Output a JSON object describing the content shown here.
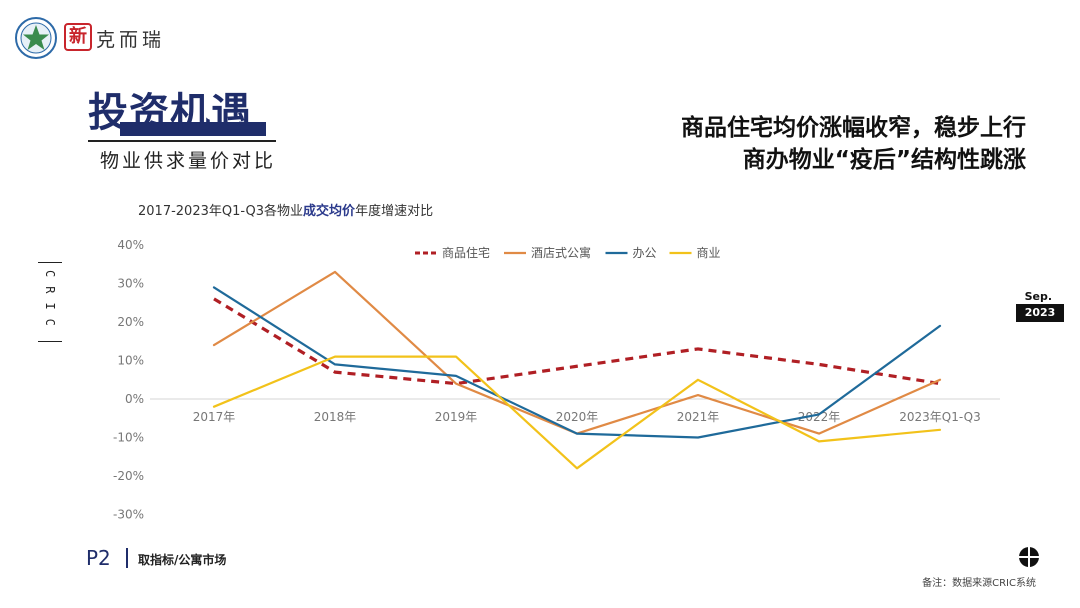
{
  "brand": {
    "name": "克而瑞",
    "mark": "新"
  },
  "title": {
    "main": "投资机遇",
    "sub": "物业供求量价对比"
  },
  "headline": {
    "line1": "商品住宅均价涨幅收窄，稳步上行",
    "line2": "商办物业“疫后”结构性跳涨"
  },
  "side_label": "CRIC",
  "date": {
    "month": "Sep.",
    "year": "2023"
  },
  "chart_title": {
    "prefix": "2017-2023年Q1-Q3各物业",
    "highlight": "成交均价",
    "suffix": "年度增速对比"
  },
  "footer": {
    "page": "P2",
    "section": "取指标/公寓市场",
    "source": "备注：数据来源CRIC系统"
  },
  "colors": {
    "navy": "#1f2d6a",
    "residential": "#b01f24",
    "apartment": "#e08a45",
    "office": "#1f6a9a",
    "commercial": "#f2c21a"
  },
  "chart_data": {
    "type": "line",
    "categories": [
      "2017年",
      "2018年",
      "2019年",
      "2020年",
      "2021年",
      "2022年",
      "2023年Q1-Q3"
    ],
    "ylim": [
      -30,
      40
    ],
    "yticks": [
      "40%",
      "30%",
      "20%",
      "10%",
      "0%",
      "-10%",
      "-20%",
      "-30%"
    ],
    "ytick_values": [
      40,
      30,
      20,
      10,
      0,
      -10,
      -20,
      -30
    ],
    "legend_position": "top-right",
    "series": [
      {
        "name": "商品住宅",
        "color": "#b01f24",
        "dashed": true,
        "values": [
          26,
          7,
          4,
          null,
          13,
          9,
          4
        ]
      },
      {
        "name": "酒店式公寓",
        "color": "#e08a45",
        "dashed": false,
        "values": [
          14,
          33,
          4,
          -9,
          1,
          -9,
          5
        ]
      },
      {
        "name": "办公",
        "color": "#1f6a9a",
        "dashed": false,
        "values": [
          29,
          9,
          6,
          -9,
          -10,
          -4,
          19
        ]
      },
      {
        "name": "商业",
        "color": "#f2c21a",
        "dashed": false,
        "values": [
          -2,
          11,
          11,
          -18,
          5,
          -11,
          -8
        ]
      }
    ]
  }
}
